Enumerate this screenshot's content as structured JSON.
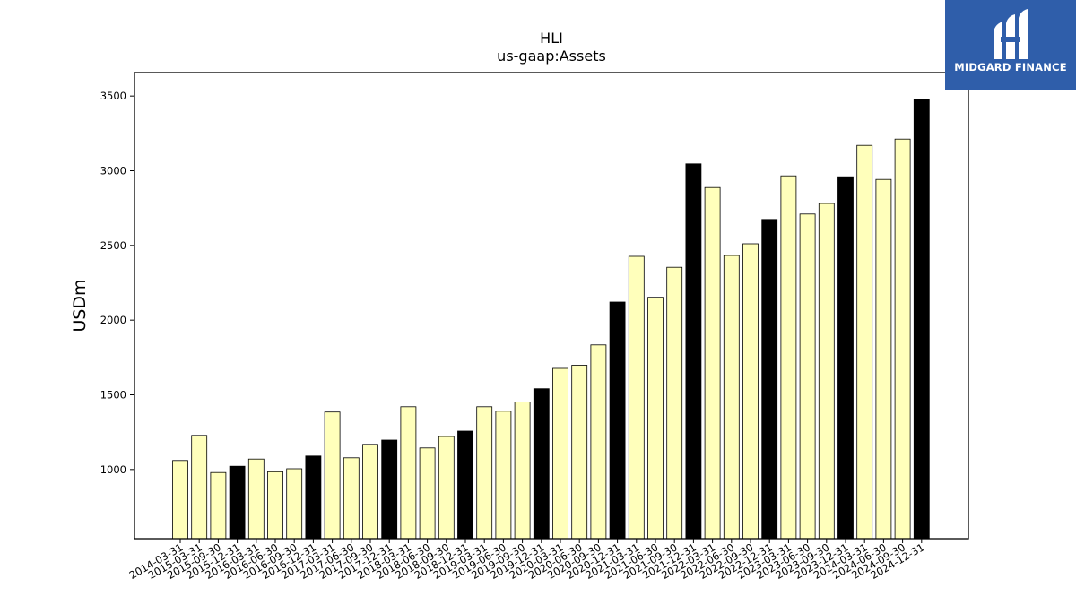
{
  "brand": {
    "name": "MIDGARD FINANCE",
    "bg_color": "#2f5eaa"
  },
  "chart_data": {
    "type": "bar",
    "title": "HLI",
    "subtitle": "us-gaap:Assets",
    "xlabel": "",
    "ylabel": "USDm",
    "ylim": [
      537,
      3657
    ],
    "yticks": [
      1000,
      1500,
      2000,
      2500,
      3000,
      3500
    ],
    "grid": false,
    "colors": {
      "quarter": "#ffffbb",
      "year_end": "#000000",
      "edge": "#000000"
    },
    "categories": [
      "2014-03-31",
      "2015-03-31",
      "2015-09-30",
      "2015-12-31",
      "2016-03-31",
      "2016-06-30",
      "2016-09-30",
      "2016-12-31",
      "2017-03-31",
      "2017-06-30",
      "2017-09-30",
      "2017-12-31",
      "2018-03-31",
      "2018-06-30",
      "2018-09-30",
      "2018-12-31",
      "2019-03-31",
      "2019-06-30",
      "2019-09-30",
      "2019-12-31",
      "2020-03-31",
      "2020-06-30",
      "2020-09-30",
      "2020-12-31",
      "2021-03-31",
      "2021-06-30",
      "2021-09-30",
      "2021-12-31",
      "2022-03-31",
      "2022-06-30",
      "2022-09-30",
      "2022-12-31",
      "2023-03-31",
      "2023-06-30",
      "2023-09-30",
      "2023-12-31",
      "2024-03-31",
      "2024-06-30",
      "2024-09-30",
      "2024-12-31"
    ],
    "values": [
      1060,
      1228,
      980,
      1022,
      1070,
      985,
      1005,
      1090,
      1385,
      1078,
      1168,
      1197,
      1420,
      1144,
      1221,
      1257,
      1420,
      1390,
      1452,
      1541,
      1677,
      1698,
      1834,
      2121,
      2427,
      2153,
      2354,
      3046,
      2888,
      2433,
      2511,
      2674,
      2966,
      2710,
      2781,
      2960,
      3170,
      2942,
      3212,
      3477
    ],
    "highlight": [
      false,
      false,
      false,
      true,
      false,
      false,
      false,
      true,
      false,
      false,
      false,
      true,
      false,
      false,
      false,
      true,
      false,
      false,
      false,
      true,
      false,
      false,
      false,
      true,
      false,
      false,
      false,
      true,
      false,
      false,
      false,
      true,
      false,
      false,
      false,
      true,
      false,
      false,
      false,
      true
    ]
  }
}
